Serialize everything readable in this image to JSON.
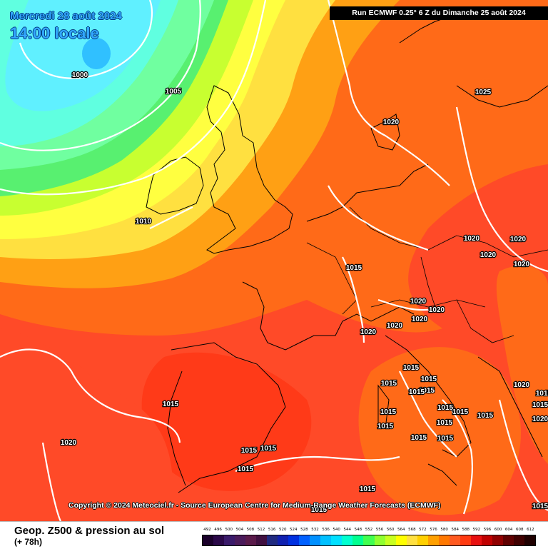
{
  "header": {
    "date": "Mercredi 28 août 2024",
    "time": "14:00 locale",
    "run": "Run ECMWF 0.25° 6 Z du Dimanche 25 août 2024"
  },
  "copyright": "Copyright © 2024 Meteociel.fr - Source European Centre for Medium-Range Weather Forecasts (ECMWF)",
  "footer": {
    "parameter": "Geop. Z500 & pression au sol",
    "lead_time": "(+ 78h)"
  },
  "scale": {
    "labels": [
      "492",
      "496",
      "500",
      "504",
      "508",
      "512",
      "516",
      "520",
      "524",
      "528",
      "532",
      "536",
      "540",
      "544",
      "548",
      "552",
      "556",
      "560",
      "564",
      "568",
      "572",
      "576",
      "580",
      "584",
      "588",
      "592",
      "596",
      "600",
      "604",
      "608",
      "612"
    ],
    "colors": [
      "#1a002a",
      "#2a0848",
      "#3a1a6a",
      "#4a1a5a",
      "#5a1a4a",
      "#401040",
      "#202a80",
      "#1020b0",
      "#0030e0",
      "#0060ff",
      "#0090ff",
      "#00c0ff",
      "#00e0ff",
      "#00ffd0",
      "#00ff90",
      "#40ff50",
      "#90ff30",
      "#c8ff20",
      "#ffff00",
      "#ffe040",
      "#ffd000",
      "#ffa000",
      "#ff7800",
      "#ff5a20",
      "#ff3a10",
      "#e81010",
      "#c00000",
      "#900000",
      "#600000",
      "#400000",
      "#200000"
    ]
  },
  "pressure_labels": [
    {
      "text": "1000"
    },
    {
      "text": "1005"
    },
    {
      "text": "1010"
    },
    {
      "text": "1025"
    },
    {
      "text": "1020"
    },
    {
      "text": "1020"
    },
    {
      "text": "1020"
    },
    {
      "text": "1020"
    },
    {
      "text": "1020"
    },
    {
      "text": "1020"
    },
    {
      "text": "1020"
    },
    {
      "text": "1020"
    },
    {
      "text": "1020"
    },
    {
      "text": "1020"
    },
    {
      "text": "1015"
    },
    {
      "text": "1015"
    },
    {
      "text": "1015"
    },
    {
      "text": "1015"
    },
    {
      "text": "1015"
    },
    {
      "text": "1015"
    },
    {
      "text": "1015"
    },
    {
      "text": "1015"
    },
    {
      "text": "1015"
    },
    {
      "text": "1015"
    },
    {
      "text": "1015"
    },
    {
      "text": "1015"
    },
    {
      "text": "1015"
    },
    {
      "text": "1015"
    },
    {
      "text": "1015"
    },
    {
      "text": "1015"
    },
    {
      "text": "1015"
    },
    {
      "text": "1015"
    },
    {
      "text": "1015"
    },
    {
      "text": "1015"
    },
    {
      "text": "1015"
    },
    {
      "text": "1020"
    },
    {
      "text": "1020"
    },
    {
      "text": "1015"
    },
    {
      "text": "1015"
    },
    {
      "text": "1020"
    }
  ]
}
